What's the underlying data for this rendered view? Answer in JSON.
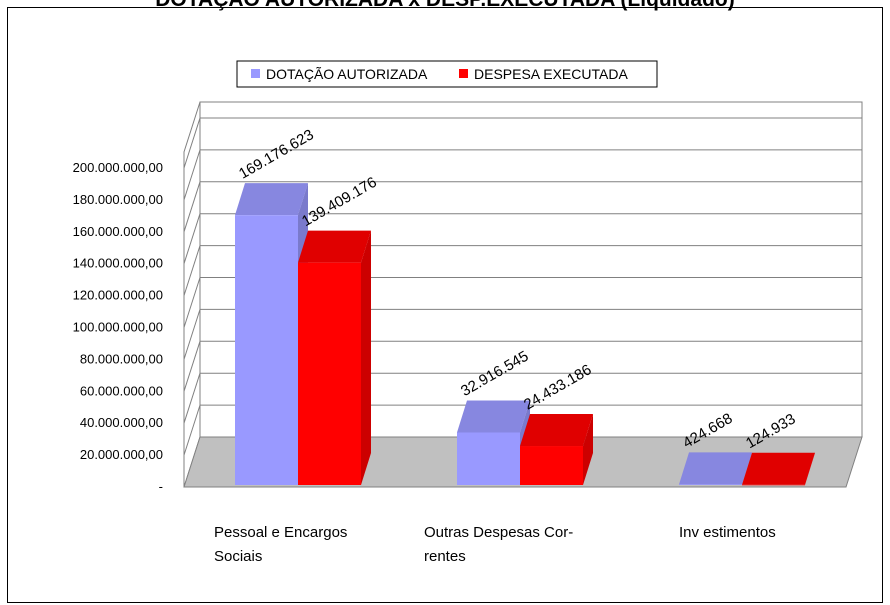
{
  "chart_data": {
    "type": "bar",
    "title": "DOTAÇÃO AUTORIZADA x DESP.EXECUTADA (Liquidado)",
    "categories": [
      "Pessoal e Encargos Sociais",
      "Outras Despesas Correntes",
      "Investimentos"
    ],
    "category_lines": [
      [
        "Pessoal e Encargos",
        "Sociais"
      ],
      [
        "Outras Despesas Cor-",
        "rentes"
      ],
      [
        "Inv estimentos"
      ]
    ],
    "series": [
      {
        "name": "DOTAÇÃO AUTORIZADA",
        "color": "#9999ff",
        "values": [
          169176623,
          32916545,
          424668
        ],
        "labels": [
          "169.176.623",
          "32.916.545",
          "424.668"
        ]
      },
      {
        "name": "DESPESA EXECUTADA",
        "color": "#ff0000",
        "values": [
          139409176,
          24433186,
          124933
        ],
        "labels": [
          "139.409.176",
          "24.433.186",
          "124.933"
        ]
      }
    ],
    "y_ticks": [
      {
        "value": 0,
        "label": "-"
      },
      {
        "value": 20000000,
        "label": "20.000.000,00"
      },
      {
        "value": 40000000,
        "label": "40.000.000,00"
      },
      {
        "value": 60000000,
        "label": "60.000.000,00"
      },
      {
        "value": 80000000,
        "label": "80.000.000,00"
      },
      {
        "value": 100000000,
        "label": "100.000.000,00"
      },
      {
        "value": 120000000,
        "label": "120.000.000,00"
      },
      {
        "value": 140000000,
        "label": "140.000.000,00"
      },
      {
        "value": 160000000,
        "label": "160.000.000,00"
      },
      {
        "value": 180000000,
        "label": "180.000.000,00"
      },
      {
        "value": 200000000,
        "label": "200.000.000,00"
      }
    ],
    "ylim": [
      0,
      200000000
    ],
    "grid": true,
    "legend_position": "top-center",
    "floor_color": "#c0c0c0",
    "style": "3d-clustered-bar"
  }
}
